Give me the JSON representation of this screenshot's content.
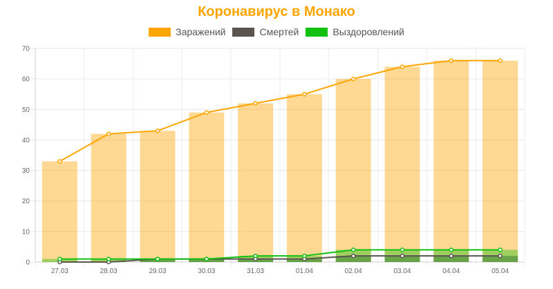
{
  "chart_data": {
    "type": "bar",
    "title": "Коронавирус в Монако",
    "categories": [
      "27.03",
      "28.03",
      "29.03",
      "30.03",
      "31.03",
      "01.04",
      "02.04",
      "03.04",
      "04.04",
      "05.04"
    ],
    "series": [
      {
        "name": "Заражений",
        "color": "#FFA500",
        "values": [
          33,
          42,
          43,
          49,
          52,
          55,
          60,
          64,
          66,
          66
        ]
      },
      {
        "name": "Смертей",
        "color": "#595450",
        "values": [
          0,
          0,
          1,
          1,
          1,
          1,
          2,
          2,
          2,
          2
        ]
      },
      {
        "name": "Выздоровлений",
        "color": "#11C011",
        "values": [
          1,
          1,
          1,
          1,
          2,
          2,
          4,
          4,
          4,
          4
        ]
      }
    ],
    "ylim": [
      0,
      70
    ],
    "yticks": [
      0,
      10,
      20,
      30,
      40,
      50,
      60,
      70
    ],
    "grid": true,
    "legend_position": "top-center",
    "render": "each series drawn as translucent bars plus a line with point markers"
  }
}
